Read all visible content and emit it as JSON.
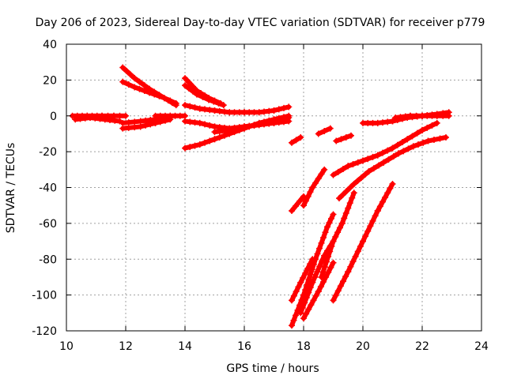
{
  "chart_data": {
    "type": "scatter",
    "title": "Day 206 of 2023, Sidereal Day-to-day VTEC variation (SDTVAR) for receiver p779",
    "xlabel": "GPS time / hours",
    "ylabel": "SDTVAR / TECUs",
    "xlim": [
      10,
      24
    ],
    "ylim": [
      -120,
      40
    ],
    "xticks": [
      "10",
      "12",
      "14",
      "16",
      "18",
      "20",
      "22",
      "24"
    ],
    "yticks": [
      "40",
      "20",
      "0",
      "-20",
      "-40",
      "-60",
      "-80",
      "-100",
      "-120"
    ],
    "grid": true,
    "marker": "+",
    "color": "#ff0000",
    "series": [
      {
        "name": "seg-1",
        "x": [
          10.2,
          10.7,
          11.2,
          11.6,
          12.0
        ],
        "y": [
          0,
          0,
          0,
          0,
          0
        ]
      },
      {
        "name": "seg-2",
        "x": [
          10.3,
          10.8,
          11.3,
          11.8
        ],
        "y": [
          -2,
          -1,
          -2,
          -3
        ]
      },
      {
        "name": "seg-3",
        "x": [
          11.9,
          12.5,
          13.0,
          13.5
        ],
        "y": [
          -4,
          -3,
          -2,
          -1
        ]
      },
      {
        "name": "seg-4",
        "x": [
          11.9,
          12.5,
          13.0,
          13.5
        ],
        "y": [
          -7,
          -6,
          -4,
          -2
        ]
      },
      {
        "name": "seg-5",
        "x": [
          13.0,
          13.5,
          14.0
        ],
        "y": [
          0,
          0,
          0
        ]
      },
      {
        "name": "seg-6",
        "x": [
          11.9,
          12.3,
          12.8,
          13.3,
          13.7
        ],
        "y": [
          27,
          21,
          15,
          10,
          6
        ]
      },
      {
        "name": "seg-7",
        "x": [
          11.9,
          12.3,
          12.8,
          13.3,
          13.7
        ],
        "y": [
          19,
          16,
          13,
          10,
          7
        ]
      },
      {
        "name": "seg-8",
        "x": [
          14.0,
          14.4,
          14.8,
          15.2
        ],
        "y": [
          21,
          14,
          10,
          7
        ]
      },
      {
        "name": "seg-9",
        "x": [
          14.0,
          14.4,
          14.8,
          15.3
        ],
        "y": [
          17,
          12,
          9,
          6
        ]
      },
      {
        "name": "seg-10",
        "x": [
          14.0,
          14.5,
          15.0,
          15.5,
          16.0,
          16.5,
          17.0,
          17.5
        ],
        "y": [
          6,
          4,
          3,
          2,
          2,
          2,
          3,
          5
        ]
      },
      {
        "name": "seg-11",
        "x": [
          14.0,
          14.5,
          15.0,
          15.5,
          16.0,
          16.5,
          17.0,
          17.5
        ],
        "y": [
          -3,
          -4,
          -6,
          -7,
          -6,
          -5,
          -3,
          -1
        ]
      },
      {
        "name": "seg-12",
        "x": [
          14.0,
          14.5,
          15.0,
          15.5,
          16.0,
          16.5,
          17.0,
          17.5
        ],
        "y": [
          -18,
          -16,
          -13,
          -10,
          -7,
          -4,
          -2,
          0
        ]
      },
      {
        "name": "seg-13",
        "x": [
          15.0,
          15.5,
          16.0,
          16.5,
          17.0,
          17.5
        ],
        "y": [
          -9,
          -8,
          -6,
          -5,
          -4,
          -3
        ]
      },
      {
        "name": "seg-14",
        "x": [
          17.6,
          17.9
        ],
        "y": [
          -15,
          -12
        ]
      },
      {
        "name": "seg-15",
        "x": [
          18.5,
          18.9
        ],
        "y": [
          -10,
          -7
        ]
      },
      {
        "name": "seg-16",
        "x": [
          19.1,
          19.6
        ],
        "y": [
          -14,
          -11
        ]
      },
      {
        "name": "seg-17",
        "x": [
          17.6,
          18.0
        ],
        "y": [
          -53,
          -45
        ]
      },
      {
        "name": "seg-18",
        "x": [
          18.0,
          18.3,
          18.7
        ],
        "y": [
          -50,
          -40,
          -30
        ]
      },
      {
        "name": "seg-19",
        "x": [
          17.6,
          18.0,
          18.4,
          18.8,
          19.0
        ],
        "y": [
          -117,
          -100,
          -80,
          -62,
          -55
        ]
      },
      {
        "name": "seg-20",
        "x": [
          17.6,
          17.9,
          18.3
        ],
        "y": [
          -103,
          -93,
          -80
        ]
      },
      {
        "name": "seg-21",
        "x": [
          17.9,
          18.3,
          18.7,
          19.0
        ],
        "y": [
          -110,
          -93,
          -78,
          -70
        ]
      },
      {
        "name": "seg-22",
        "x": [
          18.0,
          18.5,
          19.0
        ],
        "y": [
          -113,
          -98,
          -82
        ]
      },
      {
        "name": "seg-23",
        "x": [
          18.6,
          19.0,
          19.3,
          19.7
        ],
        "y": [
          -90,
          -70,
          -60,
          -43
        ]
      },
      {
        "name": "seg-24",
        "x": [
          19.0,
          19.5,
          20.0,
          20.5,
          21.0
        ],
        "y": [
          -103,
          -87,
          -70,
          -53,
          -38
        ]
      },
      {
        "name": "seg-25",
        "x": [
          19.0,
          19.5,
          20.0,
          20.5,
          21.0,
          21.5,
          22.0,
          22.5
        ],
        "y": [
          -33,
          -28,
          -25,
          -22,
          -18,
          -13,
          -8,
          -4
        ]
      },
      {
        "name": "seg-26",
        "x": [
          19.2,
          19.7,
          20.2,
          20.7,
          21.2,
          21.7,
          22.2,
          22.8
        ],
        "y": [
          -46,
          -38,
          -31,
          -26,
          -21,
          -17,
          -14,
          -12
        ]
      },
      {
        "name": "seg-27",
        "x": [
          20.0,
          20.5,
          21.0,
          21.5,
          22.0,
          22.5,
          22.9
        ],
        "y": [
          -4,
          -4,
          -3,
          -1,
          0,
          1,
          2
        ]
      },
      {
        "name": "seg-28",
        "x": [
          21.1,
          21.6,
          22.0,
          22.5,
          22.9
        ],
        "y": [
          -1,
          0,
          0,
          0,
          0
        ]
      }
    ]
  }
}
